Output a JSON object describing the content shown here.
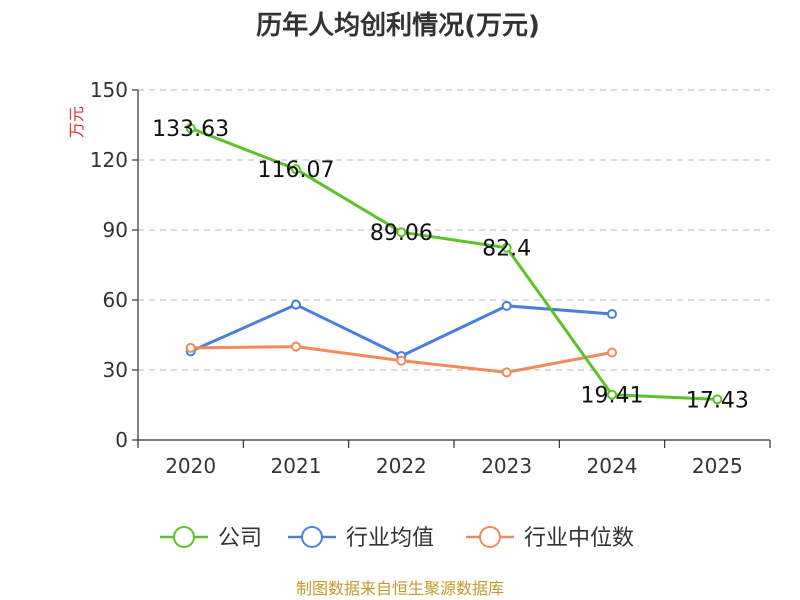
{
  "chart_data": {
    "type": "line",
    "title": "历年人均创利情况(万元)",
    "ylabel": "万元",
    "xlabel": "",
    "ylim": [
      0,
      150
    ],
    "yticks": [
      0,
      30,
      60,
      90,
      120,
      150
    ],
    "categories": [
      "2020",
      "2021",
      "2022",
      "2023",
      "2024",
      "2025"
    ],
    "grid": true,
    "legend_position": "bottom",
    "series": [
      {
        "name": "公司",
        "color": "#5cc228",
        "values": [
          133.63,
          116.07,
          89.06,
          82.4,
          19.41,
          17.43
        ],
        "labels": [
          "133.63",
          "116.07",
          "89.06",
          "82.4",
          "19.41",
          "17.43"
        ]
      },
      {
        "name": "行业均值",
        "color": "#4a7fdc",
        "values": [
          38,
          58,
          36,
          57.5,
          54,
          null
        ]
      },
      {
        "name": "行业中位数",
        "color": "#f28a5a",
        "values": [
          39.5,
          40,
          34,
          29,
          37.5,
          null
        ]
      }
    ]
  },
  "source": "制图数据来自恒生聚源数据库"
}
